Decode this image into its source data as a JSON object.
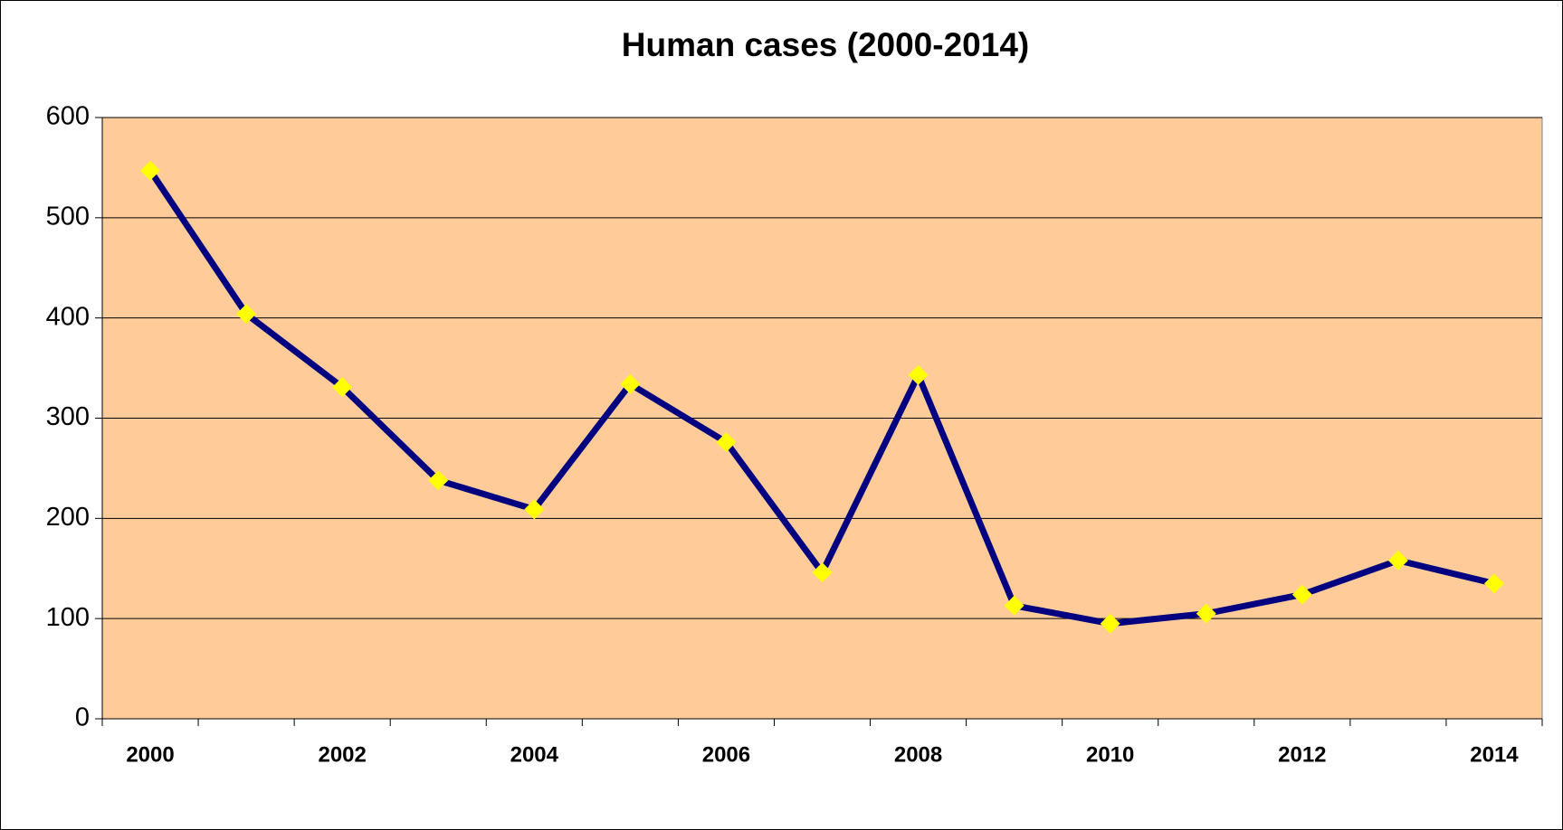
{
  "chart_data": {
    "type": "line",
    "title": "Human cases (2000-2014)",
    "categories": [
      "2000",
      null,
      "2002",
      null,
      "2004",
      null,
      "2006",
      null,
      "2008",
      null,
      "2010",
      null,
      "2012",
      null,
      "2014"
    ],
    "values": [
      547,
      404,
      331,
      238,
      209,
      334,
      276,
      146,
      343,
      113,
      95,
      105,
      124,
      158,
      135
    ],
    "color": "#000080",
    "marker_color": "#ffff00",
    "plot_background": "#ffcc99",
    "ylim": [
      0,
      600
    ],
    "yticks": [
      0,
      100,
      200,
      300,
      400,
      500,
      600
    ],
    "grid": true
  }
}
